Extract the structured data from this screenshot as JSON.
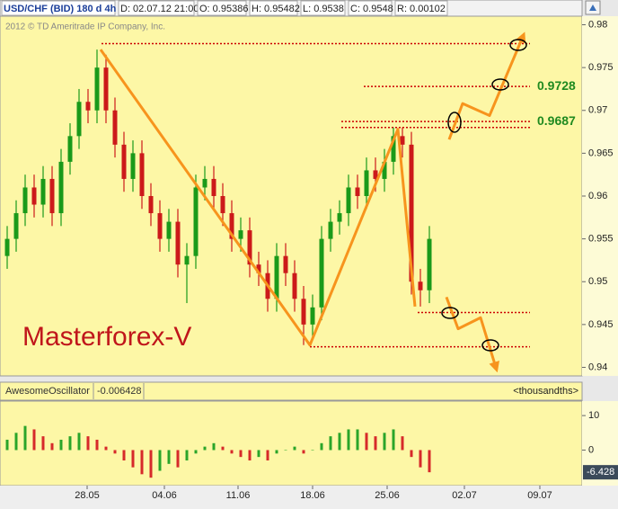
{
  "header": {
    "items": [
      "USD/CHF (BID) 180 d 4h",
      "D: 02.07.12 21:00",
      "O: 0.95386",
      "H: 0.95482",
      "L: 0.9538",
      "C: 0.9548",
      "R: 0.00102"
    ],
    "copyright": "2012 © TD Ameritrade IP Company, Inc.",
    "watermark": "Masterforex-V"
  },
  "chart_data": [
    {
      "type": "candlestick",
      "up_color": "#1a9a1a",
      "down_color": "#cc1a1a",
      "open": [
        0.953,
        0.955,
        0.958,
        0.961,
        0.959,
        0.962,
        0.958,
        0.964,
        0.967,
        0.971,
        0.97,
        0.975,
        0.97,
        0.966,
        0.962,
        0.965,
        0.96,
        0.958,
        0.955,
        0.957,
        0.952,
        0.953,
        0.961,
        0.962,
        0.96,
        0.958,
        0.955,
        0.956,
        0.952,
        0.951,
        0.948,
        0.953,
        0.951,
        0.948,
        0.945,
        0.947,
        0.955,
        0.957,
        0.958,
        0.961,
        0.96,
        0.963,
        0.962,
        0.964,
        0.967,
        0.966,
        0.95,
        0.949
      ],
      "high": [
        0.9565,
        0.9595,
        0.9625,
        0.9625,
        0.9635,
        0.9635,
        0.9655,
        0.9685,
        0.9725,
        0.9725,
        0.9771,
        0.9765,
        0.9715,
        0.9675,
        0.9665,
        0.9665,
        0.9615,
        0.9595,
        0.9585,
        0.9585,
        0.9545,
        0.9625,
        0.9635,
        0.9635,
        0.9615,
        0.9595,
        0.9575,
        0.9575,
        0.9535,
        0.9525,
        0.9545,
        0.9545,
        0.9525,
        0.9495,
        0.9485,
        0.9565,
        0.9585,
        0.9595,
        0.9625,
        0.9625,
        0.9645,
        0.9645,
        0.9655,
        0.968,
        0.968,
        0.9675,
        0.9515,
        0.9565
      ],
      "low": [
        0.9515,
        0.9535,
        0.9565,
        0.9575,
        0.9575,
        0.9565,
        0.9565,
        0.9625,
        0.9655,
        0.9685,
        0.9685,
        0.9685,
        0.9645,
        0.9605,
        0.9605,
        0.9585,
        0.9565,
        0.9535,
        0.9535,
        0.9505,
        0.9475,
        0.9515,
        0.9595,
        0.9585,
        0.9565,
        0.9535,
        0.9535,
        0.9505,
        0.9495,
        0.9465,
        0.9465,
        0.9495,
        0.9465,
        0.9426,
        0.9435,
        0.9455,
        0.9535,
        0.9555,
        0.9565,
        0.9585,
        0.9585,
        0.9605,
        0.9605,
        0.9625,
        0.9645,
        0.9485,
        0.9471,
        0.9475
      ],
      "close": [
        0.955,
        0.958,
        0.961,
        0.959,
        0.962,
        0.958,
        0.964,
        0.967,
        0.971,
        0.97,
        0.975,
        0.97,
        0.966,
        0.962,
        0.965,
        0.96,
        0.958,
        0.955,
        0.957,
        0.952,
        0.953,
        0.961,
        0.962,
        0.96,
        0.958,
        0.955,
        0.956,
        0.952,
        0.951,
        0.948,
        0.953,
        0.951,
        0.948,
        0.945,
        0.947,
        0.955,
        0.957,
        0.958,
        0.961,
        0.96,
        0.963,
        0.962,
        0.964,
        0.967,
        0.966,
        0.95,
        0.949,
        0.955
      ],
      "xlim": [
        -0.8,
        64
      ],
      "ylim": [
        0.939,
        0.981
      ],
      "yticks": [
        0.98,
        0.975,
        0.97,
        0.965,
        0.96,
        0.955,
        0.95,
        0.945,
        0.94
      ],
      "pattern_color": "#f7941d",
      "pattern_lines": [
        {
          "x": [
            10.4,
            33.7,
            43.5,
            45.4
          ],
          "y": [
            0.9771,
            0.9426,
            0.9678,
            0.9471
          ]
        },
        {
          "x": [
            49.2,
            50.7,
            53.7,
            57.4
          ],
          "y": [
            0.9666,
            0.9708,
            0.9694,
            0.9786
          ]
        },
        {
          "x": [
            48.9,
            50.2,
            52.7,
            54.4
          ],
          "y": [
            0.9482,
            0.9445,
            0.9458,
            0.94
          ]
        }
      ],
      "level_color": "#cc0000",
      "levels": [
        {
          "value": 0.9778,
          "start": 10.5,
          "end": 58.2
        },
        {
          "value": 0.9728,
          "start": 39.7,
          "end": 58.2
        },
        {
          "value": 0.9687,
          "start": 37.2,
          "end": 58.2
        },
        {
          "value": 0.968,
          "start": 37.2,
          "end": 58.2
        },
        {
          "value": 0.9464,
          "start": 45.7,
          "end": 58.2
        },
        {
          "value": 0.9424,
          "start": 33.7,
          "end": 58.2
        }
      ],
      "price_labels": [
        0.9728,
        0.9687
      ]
    },
    {
      "type": "bar",
      "title": "AwesomeOscillator",
      "last_value_label": "-0.006428",
      "units": "<thousandths>",
      "up_color": "#2aa52a",
      "down_color": "#d62a2a",
      "values": [
        3,
        5,
        7,
        6,
        4,
        2,
        3,
        4,
        5,
        4,
        3,
        1,
        -1,
        -3,
        -5,
        -7,
        -8,
        -6,
        -4,
        -5,
        -3,
        -1,
        1,
        2,
        1,
        -1,
        -2,
        -3,
        -2,
        -3,
        -1,
        0,
        1,
        -1,
        0,
        2,
        4,
        5,
        6,
        6,
        5,
        4,
        5,
        6,
        4,
        -2,
        -5,
        -6.428
      ],
      "xlim": [
        -0.8,
        64
      ],
      "ylim": [
        -10.3,
        14.2
      ],
      "yticks": [
        10,
        0
      ],
      "xticks": [
        {
          "value": 8.9,
          "label": "28.05"
        },
        {
          "value": 17.5,
          "label": "04.06"
        },
        {
          "value": 25.7,
          "label": "11.06"
        },
        {
          "value": 34.0,
          "label": "18.06"
        },
        {
          "value": 42.3,
          "label": "25.06"
        },
        {
          "value": 50.9,
          "label": "02.07"
        },
        {
          "value": 59.3,
          "label": "09.07"
        }
      ]
    }
  ]
}
